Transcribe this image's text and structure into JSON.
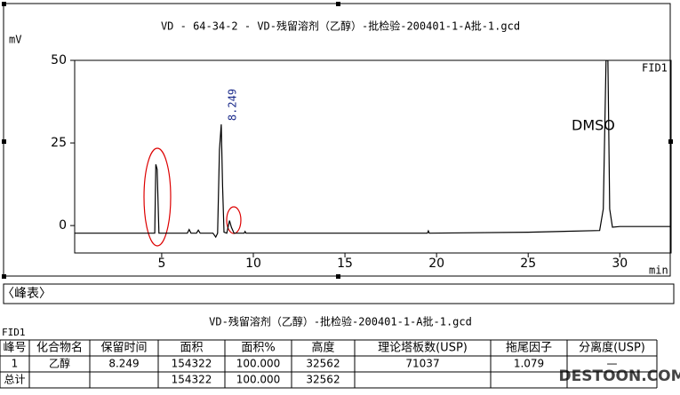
{
  "chart_data": {
    "type": "line",
    "title": "VD - 64-34-2 - VD-残留溶剂（乙醇）-批检验-200401-1-A批-1.gcd",
    "y_label": "mV",
    "x_label": "min",
    "detector": "FID1",
    "annotations": [
      "8.249",
      "DMSO"
    ],
    "x": [
      0.25,
      4.5,
      4.62,
      4.68,
      4.75,
      4.85,
      5.5,
      6.4,
      6.5,
      6.6,
      6.9,
      7.0,
      7.1,
      7.8,
      7.95,
      8.05,
      8.15,
      8.249,
      8.32,
      8.4,
      8.55,
      8.7,
      8.8,
      8.95,
      9.5,
      9.55,
      9.6,
      15,
      19.5,
      19.55,
      19.6,
      25,
      28.9,
      29.1,
      29.25,
      29.35,
      29.45,
      29.6,
      30,
      32.8
    ],
    "values": [
      -2.3,
      -2.3,
      -2.3,
      18.5,
      17,
      -2.3,
      -2.3,
      -2.3,
      -1.2,
      -2.3,
      -2.3,
      -1.4,
      -2.3,
      -2.3,
      -3.5,
      -2.3,
      23,
      30.6,
      12,
      -2,
      -2.3,
      1.5,
      -0.5,
      -2.3,
      -2.3,
      -1.8,
      -2.3,
      -2.3,
      -2.3,
      -1.6,
      -2.3,
      -2.0,
      -1.5,
      5,
      50,
      50,
      5,
      -0.5,
      -0.3,
      -0.3
    ],
    "color": "#000000",
    "xlim": [
      0.25,
      32.8
    ],
    "xticks": [
      5,
      10,
      15,
      20,
      25,
      30
    ],
    "ylim": [
      -8.3,
      50
    ],
    "yticks": [
      0,
      25,
      50
    ]
  },
  "tab": "〈峰表〉",
  "table": {
    "title": "VD-残留溶剂（乙醇）-批检验-200401-1-A批-1.gcd",
    "detector": "FID1",
    "columns": [
      "峰号",
      "化合物名",
      "保留时间",
      "面积",
      "面积%",
      "高度",
      "理论塔板数(USP)",
      "拖尾因子",
      "分离度(USP)"
    ],
    "rows": [
      [
        "1",
        "乙醇",
        "8.249",
        "154322",
        "100.000",
        "32562",
        "71037",
        "1.079",
        "—"
      ]
    ],
    "total": [
      "总计",
      "154322",
      "100.000",
      "32562"
    ]
  },
  "watermark": "DESTOON.COM"
}
